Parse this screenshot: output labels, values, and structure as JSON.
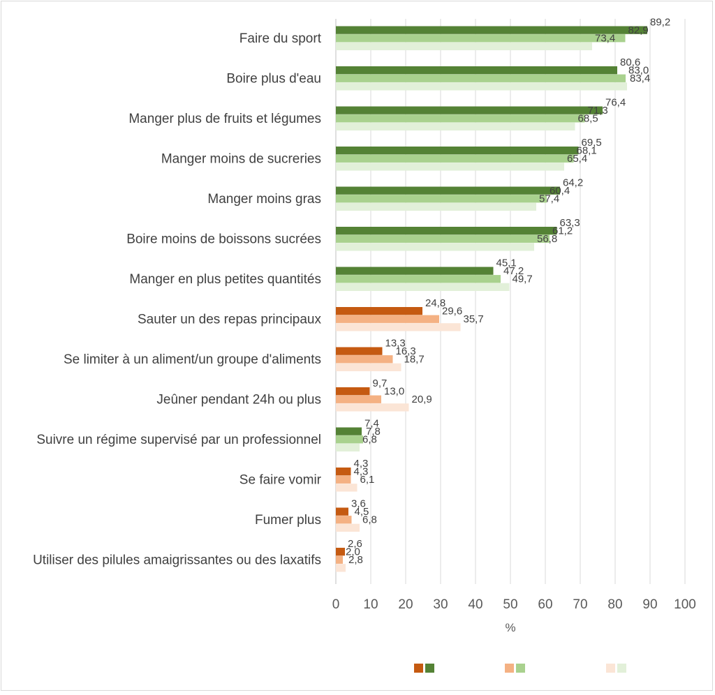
{
  "chart_data": {
    "type": "bar",
    "orientation": "horizontal",
    "title": "",
    "xlabel": "%",
    "ylabel": "",
    "xlim": [
      0,
      100
    ],
    "xticks": [
      0,
      10,
      20,
      30,
      40,
      50,
      60,
      70,
      80,
      90,
      100
    ],
    "grid": "vertical",
    "legend_position": "bottom",
    "legend_labels_visible": false,
    "categories": [
      "Faire du sport",
      "Boire plus d'eau",
      "Manger plus de fruits et légumes",
      "Manger moins de sucreries",
      "Manger moins gras",
      "Boire moins de boissons sucrées",
      "Manger en plus petites quantités",
      "Sauter un des repas principaux",
      "Se limiter à un aliment/un groupe d'aliments",
      "Jeûner pendant 24h ou plus",
      "Suivre un régime supervisé par un professionnel",
      "Se faire vomir",
      "Fumer plus",
      "Utiliser des pilules amaigrissantes ou des laxatifs"
    ],
    "category_color_group": [
      "green",
      "green",
      "green",
      "green",
      "green",
      "green",
      "green",
      "orange",
      "orange",
      "orange",
      "green",
      "orange",
      "orange",
      "orange"
    ],
    "series": [
      {
        "values": [
          89.2,
          80.6,
          76.4,
          69.5,
          64.2,
          63.3,
          45.1,
          24.8,
          13.3,
          9.7,
          7.4,
          4.3,
          3.6,
          2.6
        ],
        "labels": [
          "89,2",
          "80,6",
          "76,4",
          "69,5",
          "64,2",
          "63,3",
          "45,1",
          "24,8",
          "13,3",
          "9,7",
          "7,4",
          "4,3",
          "3,6",
          "2,6"
        ],
        "colors": {
          "green": "#548235",
          "orange": "#c55a11"
        }
      },
      {
        "values": [
          82.9,
          83.0,
          71.3,
          68.1,
          60.4,
          61.2,
          47.2,
          29.6,
          16.3,
          13.0,
          7.8,
          4.3,
          4.5,
          2.0
        ],
        "labels": [
          "82,9",
          "83,0",
          "71,3",
          "68,1",
          "60,4",
          "61,2",
          "47,2",
          "29,6",
          "16,3",
          "13,0",
          "7,8",
          "4,3",
          "4,5",
          "2,0"
        ],
        "colors": {
          "green": "#a9d18e",
          "orange": "#f4b183"
        }
      },
      {
        "values": [
          73.4,
          83.4,
          68.5,
          65.4,
          57.4,
          56.8,
          49.7,
          35.7,
          18.7,
          20.9,
          6.8,
          6.1,
          6.8,
          2.8
        ],
        "labels": [
          "73,4",
          "83,4",
          "68,5",
          "65,4",
          "57,4",
          "56,8",
          "49,7",
          "35,7",
          "18,7",
          "20,9",
          "6,8",
          "6,1",
          "6,8",
          "2,8"
        ],
        "colors": {
          "green": "#e2f0d9",
          "orange": "#fbe5d6"
        }
      }
    ]
  }
}
